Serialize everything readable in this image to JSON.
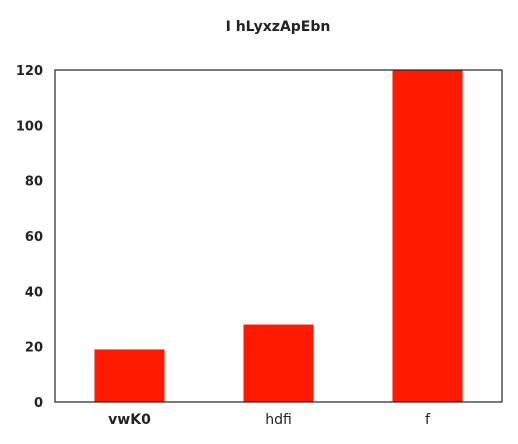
{
  "chart_data": {
    "type": "bar",
    "title": "I hLyxzApEbn",
    "xlabel": "",
    "ylabel": "",
    "categories": [
      "vwK0",
      "hdfi",
      "f"
    ],
    "bold_categories": [
      "vwK0"
    ],
    "values": [
      19,
      28,
      120
    ],
    "ylim": [
      0,
      120
    ],
    "yticks": [
      0,
      20,
      40,
      60,
      80,
      100,
      120
    ],
    "grid": false,
    "legend": "none",
    "colors": {
      "bar": "#ff1a00",
      "axis": "#222222"
    }
  }
}
